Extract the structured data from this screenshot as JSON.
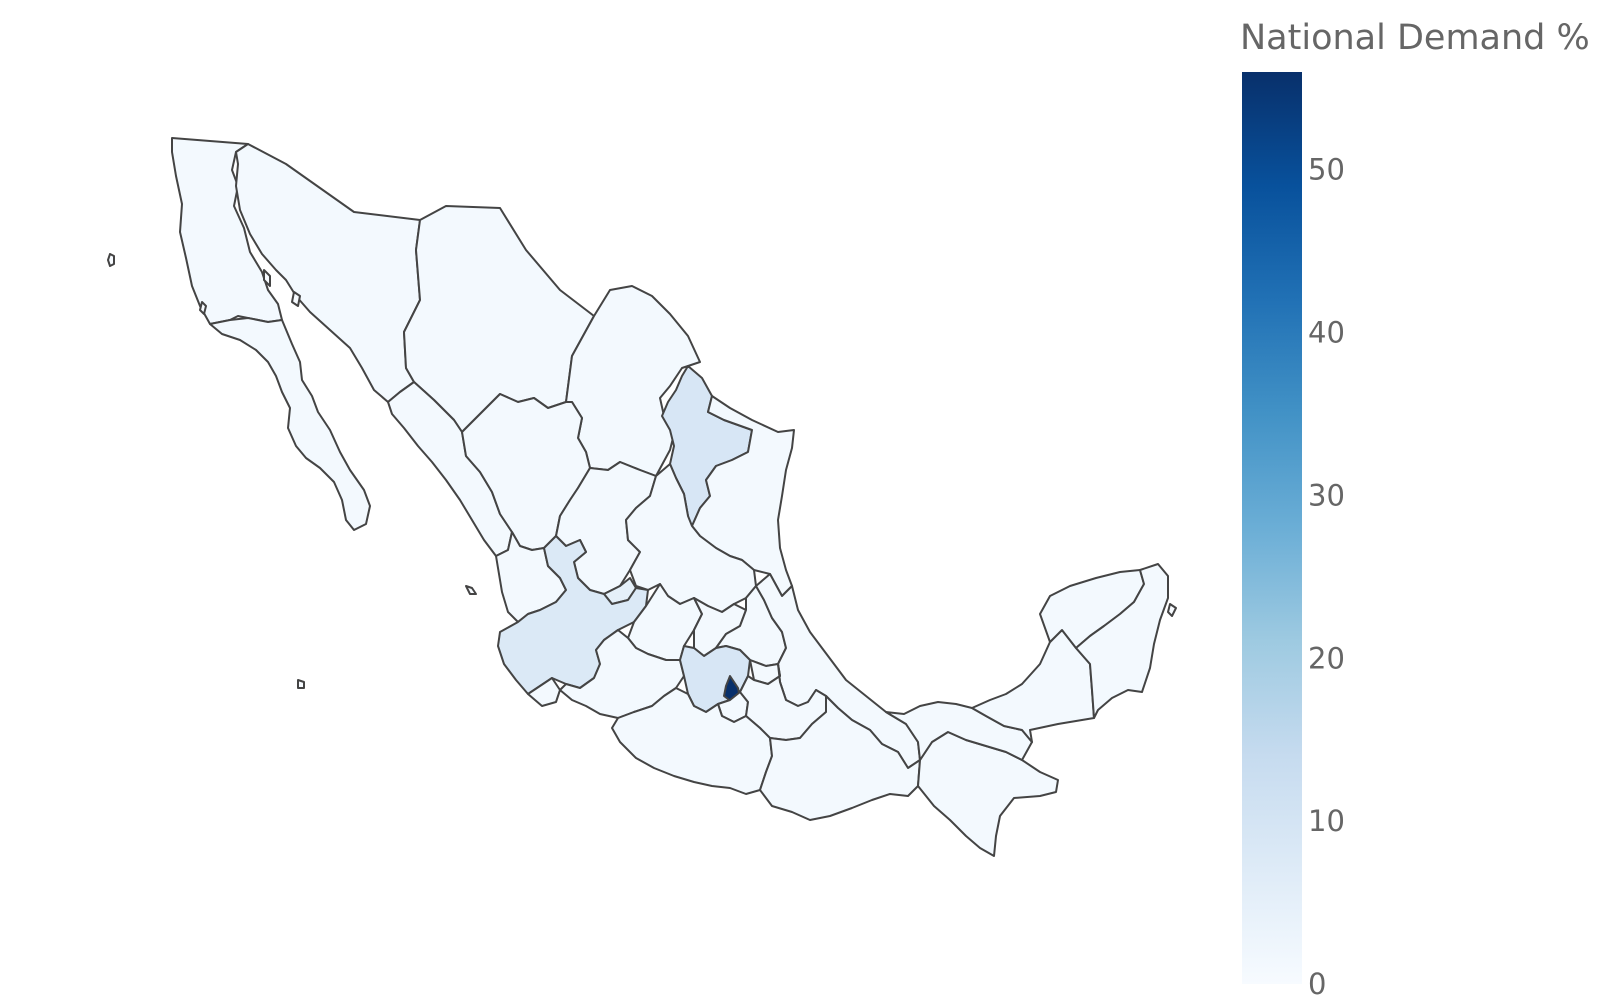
{
  "colorbar": {
    "title": "National Demand %",
    "min": 0,
    "max": 56,
    "ticks": [
      "0",
      "10",
      "20",
      "30",
      "40",
      "50"
    ],
    "colorscale": [
      "#f7fbff",
      "#deebf7",
      "#c6dbef",
      "#9ecae1",
      "#6baed6",
      "#4292c6",
      "#2171b5",
      "#08519c",
      "#08306b"
    ]
  },
  "regions": [
    {
      "name": "Baja California",
      "value": 1
    },
    {
      "name": "Baja California Sur",
      "value": 1
    },
    {
      "name": "Sonora",
      "value": 1
    },
    {
      "name": "Chihuahua",
      "value": 1
    },
    {
      "name": "Coahuila",
      "value": 1
    },
    {
      "name": "Nuevo León",
      "value": 9
    },
    {
      "name": "Tamaulipas",
      "value": 1
    },
    {
      "name": "Sinaloa",
      "value": 1
    },
    {
      "name": "Durango",
      "value": 1
    },
    {
      "name": "Zacatecas",
      "value": 1
    },
    {
      "name": "San Luis Potosí",
      "value": 1
    },
    {
      "name": "Nayarit",
      "value": 1
    },
    {
      "name": "Aguascalientes",
      "value": 5
    },
    {
      "name": "Jalisco",
      "value": 8
    },
    {
      "name": "Guanajuato",
      "value": 1
    },
    {
      "name": "Querétaro",
      "value": 1
    },
    {
      "name": "Hidalgo",
      "value": 1
    },
    {
      "name": "Veracruz",
      "value": 1
    },
    {
      "name": "Colima",
      "value": 1
    },
    {
      "name": "Michoacán",
      "value": 1
    },
    {
      "name": "Estado de México",
      "value": 9
    },
    {
      "name": "Ciudad de México",
      "value": 56
    },
    {
      "name": "Morelos",
      "value": 1
    },
    {
      "name": "Tlaxcala",
      "value": 1
    },
    {
      "name": "Puebla",
      "value": 1
    },
    {
      "name": "Guerrero",
      "value": 1
    },
    {
      "name": "Oaxaca",
      "value": 1
    },
    {
      "name": "Chiapas",
      "value": 1
    },
    {
      "name": "Tabasco",
      "value": 1
    },
    {
      "name": "Campeche",
      "value": 1
    },
    {
      "name": "Yucatán",
      "value": 1
    },
    {
      "name": "Quintana Roo",
      "value": 1
    }
  ]
}
